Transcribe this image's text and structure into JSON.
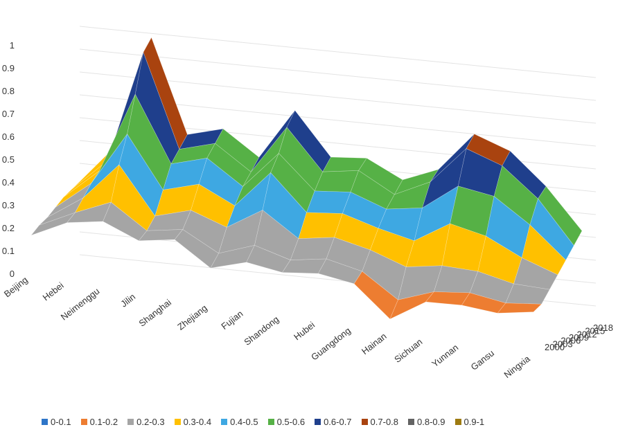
{
  "chart_data": {
    "type": "surface",
    "title": "",
    "xlabel": "",
    "ylabel": "",
    "zlim": [
      0,
      1
    ],
    "z_ticks": [
      "0",
      "0.1",
      "0.2",
      "0.3",
      "0.4",
      "0.5",
      "0.6",
      "0.7",
      "0.8",
      "0.9",
      "1"
    ],
    "x_ticks": [
      "Beijing",
      "Hebei",
      "Neimenggu",
      "Jilin",
      "Shanghai",
      "Zhejiang",
      "Fujian",
      "Shandong",
      "Hubei",
      "Guangdong",
      "Hainan",
      "Sichuan",
      "Yunnan",
      "Gansu",
      "Ningxia"
    ],
    "depth_ticks": [
      "2000",
      "2003",
      "2006",
      "2009",
      "2012",
      "2015",
      "2018"
    ],
    "legend_position": "bottom",
    "legend": [
      {
        "label": "0-0.1",
        "color": "#2e75c8"
      },
      {
        "label": "0.1-0.2",
        "color": "#ed7d31"
      },
      {
        "label": "0.2-0.3",
        "color": "#a5a5a5"
      },
      {
        "label": "0.3-0.4",
        "color": "#ffc000"
      },
      {
        "label": "0.4-0.5",
        "color": "#3ea8e2"
      },
      {
        "label": "0.5-0.6",
        "color": "#56b146"
      },
      {
        "label": "0.6-0.7",
        "color": "#1f3f8c"
      },
      {
        "label": "0.7-0.8",
        "color": "#a9430f"
      },
      {
        "label": "0.8-0.9",
        "color": "#636363"
      },
      {
        "label": "0.9-1",
        "color": "#9e7b11"
      }
    ],
    "series": [
      {
        "name": "2000",
        "values": [
          0.17,
          0.25,
          0.28,
          0.22,
          0.25,
          0.15,
          0.2,
          0.18,
          0.2,
          0.18,
          0.05,
          0.15,
          0.16,
          0.15,
          0.18
        ]
      },
      {
        "name": "2003",
        "values": [
          0.2,
          0.28,
          0.35,
          0.25,
          0.28,
          0.2,
          0.26,
          0.22,
          0.25,
          0.22,
          0.12,
          0.18,
          0.2,
          0.18,
          0.2
        ]
      },
      {
        "name": "2006",
        "values": [
          0.22,
          0.33,
          0.5,
          0.3,
          0.35,
          0.3,
          0.4,
          0.3,
          0.33,
          0.3,
          0.25,
          0.28,
          0.28,
          0.25,
          0.25
        ]
      },
      {
        "name": "2009",
        "values": [
          0.25,
          0.38,
          0.62,
          0.4,
          0.45,
          0.38,
          0.55,
          0.4,
          0.42,
          0.38,
          0.35,
          0.45,
          0.42,
          0.35,
          0.3
        ]
      },
      {
        "name": "2012",
        "values": [
          0.28,
          0.42,
          0.78,
          0.5,
          0.55,
          0.45,
          0.62,
          0.48,
          0.5,
          0.45,
          0.48,
          0.6,
          0.58,
          0.48,
          0.35
        ]
      },
      {
        "name": "2015",
        "values": [
          0.3,
          0.45,
          0.95,
          0.55,
          0.6,
          0.5,
          0.72,
          0.55,
          0.58,
          0.5,
          0.58,
          0.75,
          0.7,
          0.58,
          0.4
        ]
      },
      {
        "name": "2018",
        "values": [
          0.32,
          0.5,
          1.0,
          0.6,
          0.65,
          0.55,
          0.78,
          0.6,
          0.62,
          0.55,
          0.62,
          0.8,
          0.75,
          0.62,
          0.45
        ]
      }
    ]
  }
}
